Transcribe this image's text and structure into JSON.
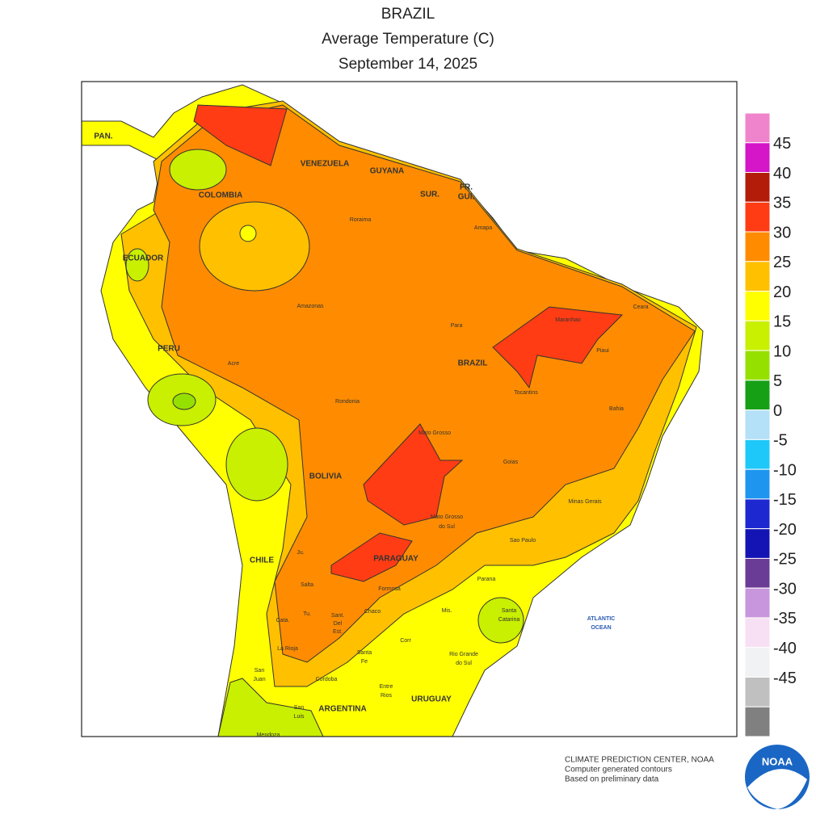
{
  "title": [
    "BRAZIL",
    "Average Temperature (C)",
    "September 14, 2025"
  ],
  "countries": [
    "PAN.",
    "VENEZUELA",
    "GUYANA",
    "SUR.",
    "FR.",
    "GUI.",
    "COLOMBIA",
    "ECUADOR",
    "PERU",
    "BRAZIL",
    "BOLIVIA",
    "CHILE",
    "PARAGUAY",
    "URUGUAY",
    "ARGENTINA"
  ],
  "regions": [
    "Roraima",
    "Amapa",
    "Amazonas",
    "Para",
    "Maranhao",
    "Ceara",
    "Piaui",
    "Acre",
    "Rondonia",
    "Tocantins",
    "Bahia",
    "Mato Grosso",
    "Goias",
    "Minas Gerais",
    "Mato Grosso",
    "do Sul",
    "Sao Paulo",
    "Parana",
    "Santa",
    "Catarina",
    "Rio Grande",
    "do Sul",
    "Ju.",
    "Salta",
    "Formosa",
    "Tu.",
    "Sant.",
    "Del",
    "Est.",
    "Chaco",
    "Mis.",
    "Cata.",
    "Corr",
    "La Rioja",
    "Santa",
    "Fe",
    "San",
    "Juan",
    "Cordoba",
    "Entre",
    "Rios",
    "San",
    "Luis",
    "Mendoza"
  ],
  "ocean": [
    "ATLANTIC",
    "OCEAN"
  ],
  "legend": {
    "colors": [
      "#f084cc",
      "#d416c8",
      "#b41c0a",
      "#ff3c14",
      "#ff8c00",
      "#ffc000",
      "#ffff00",
      "#c8f000",
      "#96e000",
      "#16a016",
      "#b4e0f8",
      "#1ec8f8",
      "#1e96f0",
      "#1e28d0",
      "#1414b4",
      "#6a3c96",
      "#c896dc",
      "#f8e0f4",
      "#f0f2f4",
      "#c0c0c0",
      "#808080"
    ],
    "labels": [
      45,
      40,
      35,
      30,
      25,
      20,
      15,
      10,
      5,
      0,
      -5,
      -10,
      -15,
      -20,
      -25,
      -30,
      -35,
      -40,
      -45
    ]
  },
  "footer": [
    "CLIMATE PREDICTION CENTER, NOAA",
    "Computer generated contours",
    "Based on preliminary data"
  ],
  "logo": "NOAA"
}
